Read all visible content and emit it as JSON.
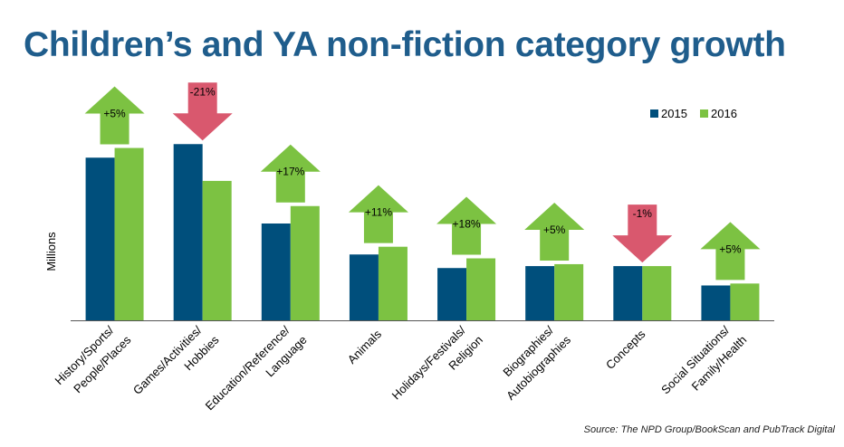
{
  "chart_data": {
    "type": "bar",
    "title": "Children’s and YA non-fiction category growth",
    "ylabel": "Millions",
    "xlabel": "",
    "ylim": [
      0,
      100
    ],
    "grid": false,
    "legend_position": "top-right",
    "source": "Source: The NPD Group/BookScan and PubTrack Digital",
    "categories": [
      [
        "History/Sports/",
        "People/Places"
      ],
      [
        "Games/Activities/",
        "Hobbies"
      ],
      [
        "Education/Reference/",
        "Language"
      ],
      [
        "Animals"
      ],
      [
        "Holidays/Festivals/",
        "Religion"
      ],
      [
        "Biographies/",
        "Autobiographies"
      ],
      [
        "Concepts"
      ],
      [
        "Social Situations/",
        "Family/Health"
      ]
    ],
    "series": [
      {
        "name": "2015",
        "color": "#004f7c",
        "values": [
          84,
          91,
          50,
          34,
          27,
          28,
          28,
          18
        ]
      },
      {
        "name": "2016",
        "color": "#7cc242",
        "values": [
          89,
          72,
          59,
          38,
          32,
          29,
          28,
          19
        ]
      }
    ],
    "changes": [
      "+5%",
      "-21%",
      "+17%",
      "+11%",
      "+18%",
      "+5%",
      "-1%",
      "+5%"
    ],
    "colors": {
      "up_arrow": "#7cc242",
      "down_arrow": "#d9586e",
      "axis": "#555555"
    }
  }
}
